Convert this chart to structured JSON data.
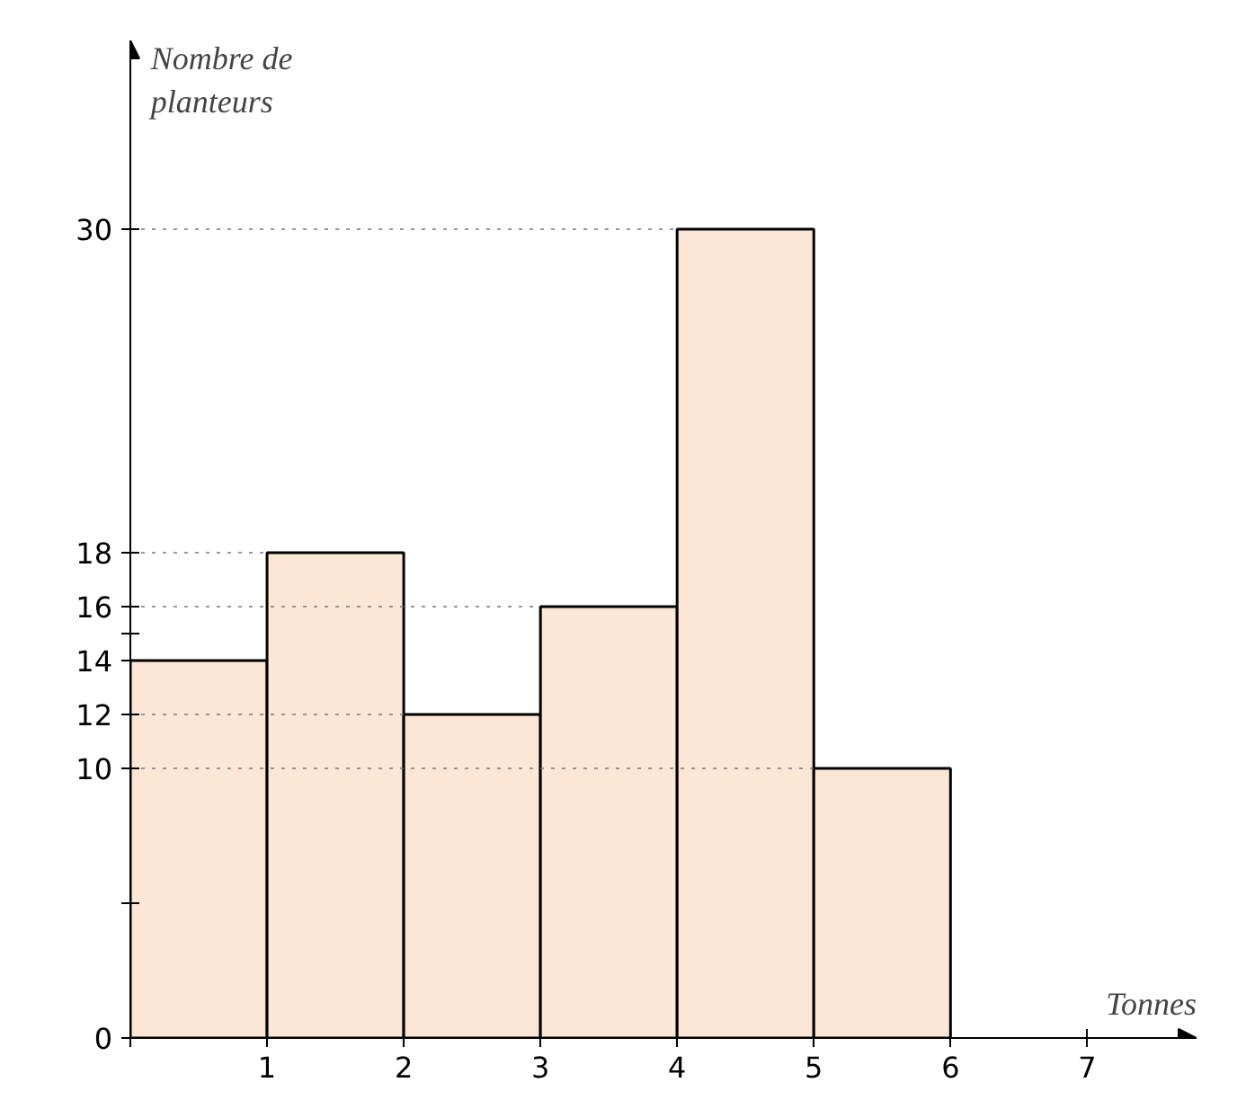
{
  "chart_data": {
    "type": "histogram",
    "xlabel": "Tonnes",
    "ylabel": "Nombre de planteurs",
    "bins": [
      0,
      1,
      2,
      3,
      4,
      5,
      6
    ],
    "values": [
      14,
      18,
      12,
      16,
      30,
      10
    ],
    "color": "#fce6d6",
    "xlim": [
      0,
      7.8
    ],
    "ylim": [
      0,
      37
    ],
    "xticks": [
      {
        "value": 0,
        "label": null
      },
      1,
      2,
      3,
      4,
      5,
      6,
      7
    ],
    "yticks": [
      0,
      {
        "value": 5,
        "label": null
      },
      10,
      12,
      14,
      {
        "value": 15,
        "label": null
      },
      16,
      18,
      30
    ],
    "ref_lines": [
      {
        "axis": "y",
        "value": 30,
        "line_style": "dotted"
      },
      {
        "axis": "y",
        "value": 18,
        "line_style": "dotted"
      },
      {
        "axis": "y",
        "value": 16,
        "line_style": "dotted"
      },
      {
        "axis": "y",
        "value": 12,
        "line_style": "dotted"
      },
      {
        "axis": "y",
        "value": 10,
        "line_style": "dotted"
      }
    ],
    "grid": false
  }
}
